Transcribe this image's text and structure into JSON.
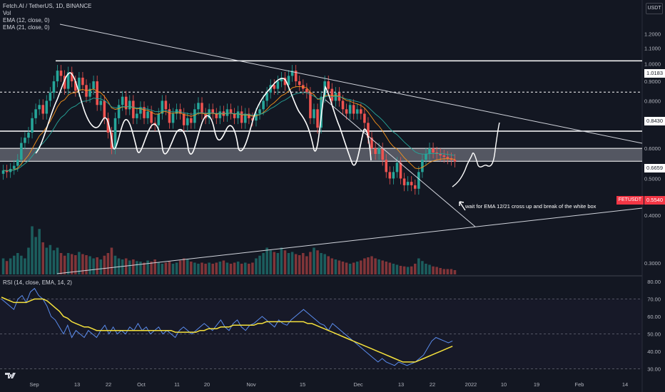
{
  "legend": {
    "title": "Fetch.AI / TetherUS, 1D, BINANCE",
    "vol": "Vol",
    "ema12": "EMA (12, close, 0)",
    "ema21": "EMA (21, close, 0)"
  },
  "rsi_legend": "RSI (14, close, EMA, 14, 2)",
  "currency": "USDT",
  "annotation": "wait for EMA 12/21 cross up and break of the white box",
  "symbol_tag": "FETUSDT",
  "price_tags": {
    "resistance": "1.0183",
    "target": "0.8430",
    "box_top": "0.6659",
    "current": "0.5540"
  },
  "colors": {
    "background": "#131722",
    "up": "#26a69a",
    "down": "#ef5350",
    "ema12": "#f7931a",
    "ema21": "#26a69a",
    "rsi": "#5b8def",
    "rsi_ma": "#f5e13c",
    "lines": "#ffffff"
  },
  "chart_data": [
    {
      "type": "candlestick",
      "title": "Fetch.AI / TetherUS, 1D, BINANCE",
      "y_scale": "log",
      "ylim": [
        0.28,
        1.35
      ],
      "y_ticks": [
        "1.2000",
        "1.1000",
        "1.0000",
        "0.9000",
        "0.8000",
        "0.7000",
        "0.6000",
        "0.5000",
        "0.4000",
        "0.3000"
      ],
      "x_ticks": [
        "Sep",
        "13",
        "22",
        "Oct",
        "11",
        "20",
        "Nov",
        "15",
        "Dec",
        "13",
        "22",
        "2022",
        "10",
        "19",
        "Feb",
        "14"
      ],
      "horizontal_levels": [
        1.0183,
        0.843,
        0.6659
      ],
      "support_box": [
        0.555,
        0.6
      ],
      "closes": [
        0.525,
        0.52,
        0.53,
        0.54,
        0.56,
        0.62,
        0.64,
        0.66,
        0.72,
        0.76,
        0.78,
        0.74,
        0.8,
        0.84,
        0.9,
        0.96,
        0.93,
        0.86,
        0.95,
        0.9,
        0.85,
        0.92,
        0.88,
        0.82,
        0.86,
        0.9,
        0.78,
        0.8,
        0.72,
        0.66,
        0.6,
        0.72,
        0.78,
        0.82,
        0.76,
        0.8,
        0.72,
        0.74,
        0.77,
        0.72,
        0.75,
        0.7,
        0.69,
        0.74,
        0.8,
        0.76,
        0.7,
        0.74,
        0.76,
        0.74,
        0.69,
        0.72,
        0.7,
        0.76,
        0.79,
        0.74,
        0.72,
        0.76,
        0.74,
        0.72,
        0.75,
        0.73,
        0.76,
        0.74,
        0.72,
        0.75,
        0.7,
        0.74,
        0.72,
        0.71,
        0.74,
        0.76,
        0.8,
        0.84,
        0.88,
        0.86,
        0.9,
        0.92,
        0.88,
        0.93,
        0.96,
        0.9,
        0.88,
        0.86,
        0.84,
        0.72,
        0.76,
        0.68,
        0.82,
        0.9,
        0.86,
        0.8,
        0.84,
        0.8,
        0.76,
        0.74,
        0.78,
        0.74,
        0.76,
        0.74,
        0.7,
        0.64,
        0.6,
        0.58,
        0.6,
        0.56,
        0.52,
        0.5,
        0.52,
        0.55,
        0.5,
        0.48,
        0.49,
        0.48,
        0.47,
        0.52,
        0.56,
        0.58,
        0.6,
        0.585,
        0.58,
        0.575,
        0.57,
        0.565,
        0.56,
        0.554
      ],
      "volume": [
        0.3,
        0.25,
        0.3,
        0.35,
        0.4,
        0.35,
        0.3,
        0.5,
        0.9,
        0.7,
        0.85,
        0.6,
        0.5,
        0.55,
        0.45,
        0.5,
        0.4,
        0.35,
        0.4,
        0.38,
        0.36,
        0.42,
        0.38,
        0.36,
        0.34,
        0.3,
        0.32,
        0.28,
        0.35,
        0.4,
        0.5,
        0.35,
        0.3,
        0.28,
        0.3,
        0.26,
        0.28,
        0.25,
        0.24,
        0.22,
        0.26,
        0.24,
        0.28,
        0.22,
        0.2,
        0.22,
        0.24,
        0.2,
        0.22,
        0.26,
        0.3,
        0.28,
        0.24,
        0.22,
        0.2,
        0.22,
        0.2,
        0.22,
        0.2,
        0.22,
        0.24,
        0.26,
        0.22,
        0.2,
        0.22,
        0.24,
        0.2,
        0.22,
        0.2,
        0.22,
        0.3,
        0.35,
        0.4,
        0.5,
        0.45,
        0.42,
        0.4,
        0.5,
        0.45,
        0.4,
        0.42,
        0.38,
        0.36,
        0.4,
        0.34,
        0.42,
        0.5,
        0.45,
        0.4,
        0.38,
        0.34,
        0.3,
        0.28,
        0.26,
        0.24,
        0.22,
        0.2,
        0.22,
        0.24,
        0.26,
        0.3,
        0.32,
        0.34,
        0.3,
        0.28,
        0.26,
        0.24,
        0.22,
        0.2,
        0.18,
        0.16,
        0.15,
        0.14,
        0.15,
        0.2,
        0.3,
        0.25,
        0.2,
        0.18,
        0.15,
        0.14,
        0.12,
        0.1,
        0.1,
        0.1,
        0.08
      ]
    },
    {
      "type": "line",
      "title": "RSI (14, close, EMA, 14, 2)",
      "ylim": [
        25,
        82
      ],
      "y_ticks": [
        "80.00",
        "70.00",
        "60.00",
        "50.00",
        "40.00",
        "30.00"
      ],
      "series": [
        {
          "name": "RSI",
          "values": [
            70,
            68,
            66,
            64,
            70,
            72,
            68,
            74,
            76,
            72,
            70,
            66,
            60,
            58,
            54,
            50,
            55,
            48,
            52,
            50,
            48,
            52,
            50,
            48,
            52,
            55,
            50,
            54,
            50,
            52,
            50,
            54,
            52,
            56,
            52,
            54,
            50,
            52,
            54,
            50,
            52,
            50,
            48,
            52,
            54,
            52,
            50,
            52,
            54,
            56,
            54,
            52,
            55,
            58,
            54,
            52,
            56,
            58,
            54,
            52,
            55,
            56,
            58,
            60,
            58,
            56,
            54,
            58,
            56,
            55,
            58,
            60,
            62,
            64,
            62,
            60,
            58,
            56,
            55,
            52,
            56,
            54,
            52,
            50,
            48,
            46,
            44,
            42,
            40,
            38,
            36,
            34,
            36,
            34,
            33,
            32,
            34,
            33,
            32,
            33,
            34,
            36,
            38,
            42,
            46,
            48,
            47,
            46,
            45,
            46
          ]
        },
        {
          "name": "RSI MA",
          "values": [
            71,
            70,
            69,
            68,
            68,
            68,
            68,
            69,
            70,
            70,
            70,
            69,
            67,
            65,
            63,
            60,
            59,
            57,
            56,
            55,
            54,
            54,
            53,
            52,
            52,
            52,
            52,
            52,
            52,
            52,
            52,
            52,
            52,
            52,
            52,
            52,
            52,
            52,
            52,
            52,
            52,
            52,
            51,
            51,
            51,
            51,
            51,
            51,
            52,
            52,
            53,
            53,
            53,
            54,
            54,
            54,
            55,
            55,
            55,
            55,
            55,
            55,
            56,
            56,
            57,
            57,
            57,
            57,
            57,
            57,
            57,
            57,
            57,
            57,
            56,
            56,
            55,
            54,
            53,
            52,
            51,
            50,
            49,
            48,
            47,
            46,
            45,
            44,
            43,
            42,
            41,
            40,
            39,
            38,
            37,
            36,
            35,
            34,
            34,
            34,
            34,
            35,
            36,
            37,
            38,
            39,
            40,
            41,
            42,
            43
          ]
        }
      ]
    }
  ]
}
